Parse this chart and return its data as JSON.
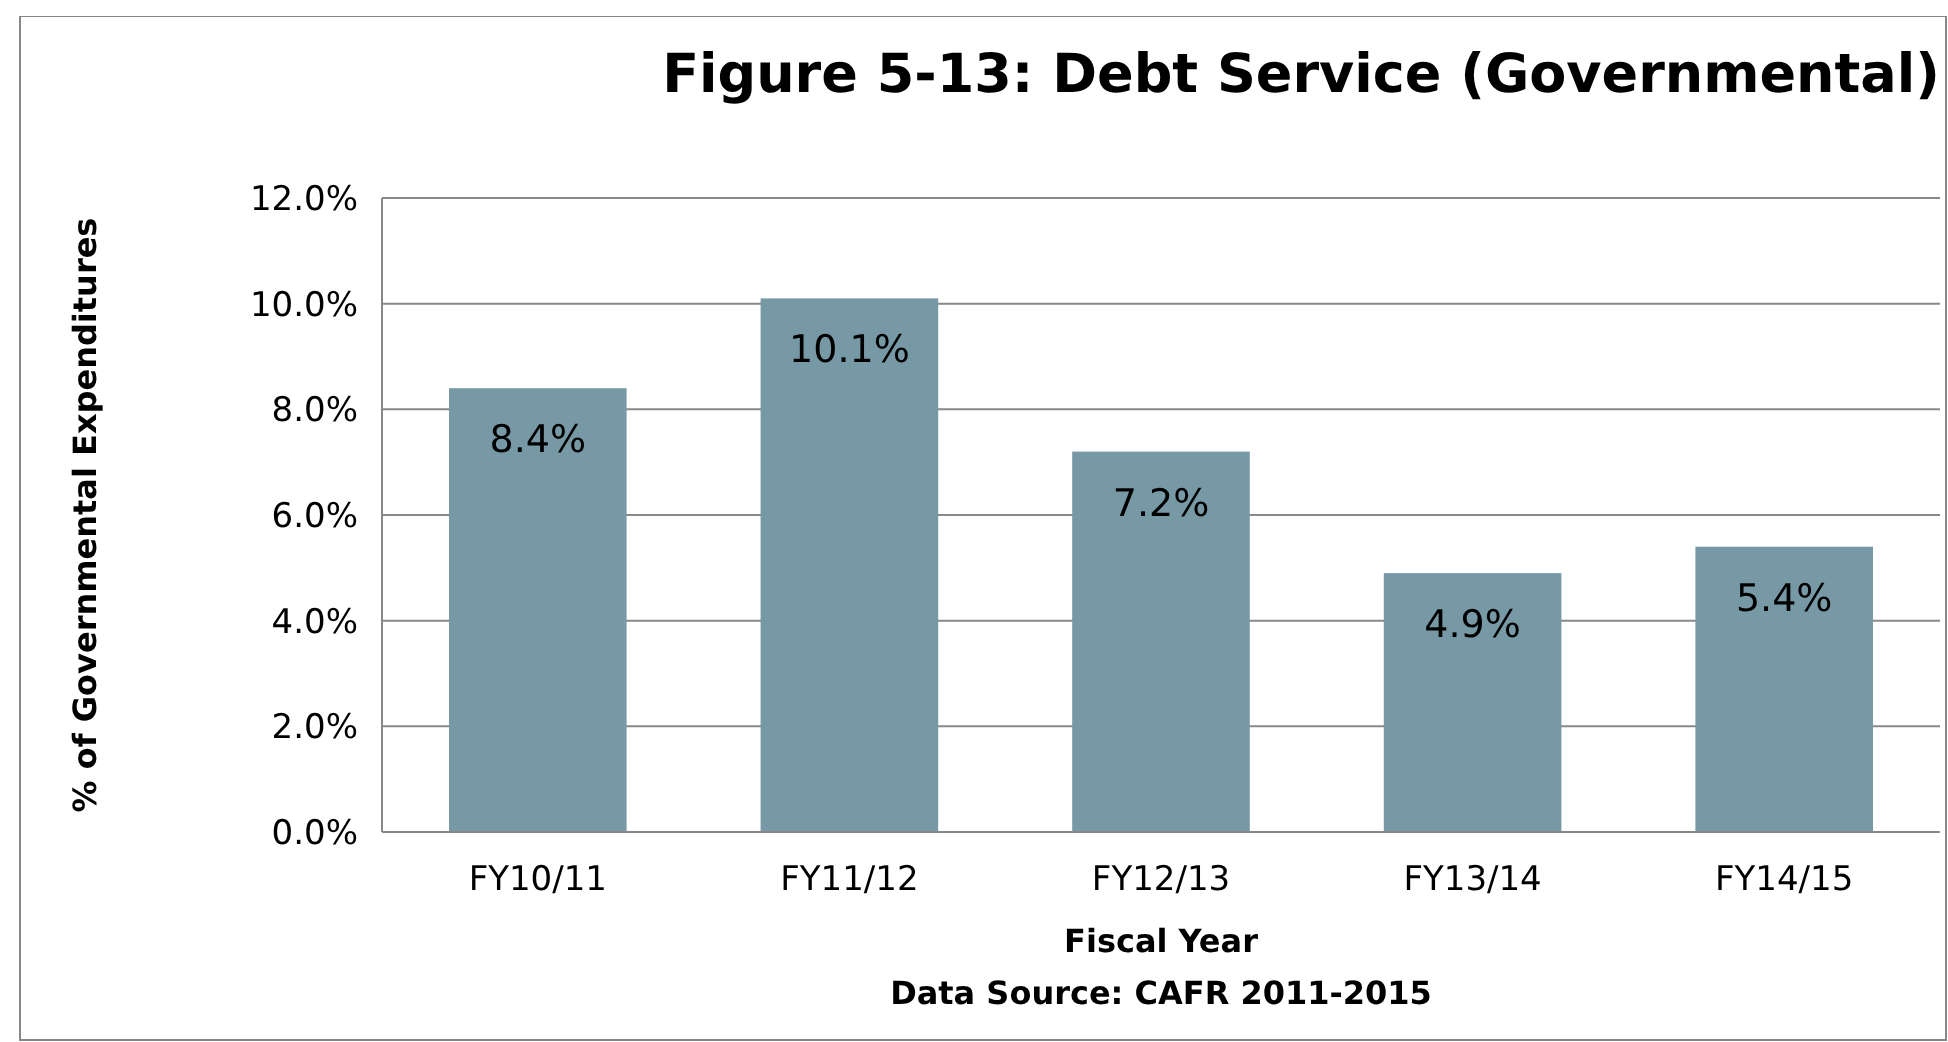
{
  "chart_data": {
    "type": "bar",
    "title": "Figure 5-13:  Debt Service (Governmental)",
    "xlabel": "Fiscal Year",
    "ylabel": "% of Governmental Expenditures",
    "annotations": [
      "Data Source: CAFR 2011-2015"
    ],
    "categories": [
      "FY10/11",
      "FY11/12",
      "FY12/13",
      "FY13/14",
      "FY14/15"
    ],
    "values": [
      8.4,
      10.1,
      7.2,
      4.9,
      5.4
    ],
    "value_labels": [
      "8.4%",
      "10.1%",
      "7.2%",
      "4.9%",
      "5.4%"
    ],
    "color": "#7799a5",
    "ylim": [
      0,
      12
    ],
    "yticks": [
      {
        "value": 0,
        "label": "0.0%"
      },
      {
        "value": 2,
        "label": "2.0%"
      },
      {
        "value": 4,
        "label": "4.0%"
      },
      {
        "value": 6,
        "label": "6.0%"
      },
      {
        "value": 8,
        "label": "8.0%"
      },
      {
        "value": 10,
        "label": "10.0%"
      },
      {
        "value": 12,
        "label": "12.0%"
      }
    ],
    "grid": "y"
  }
}
